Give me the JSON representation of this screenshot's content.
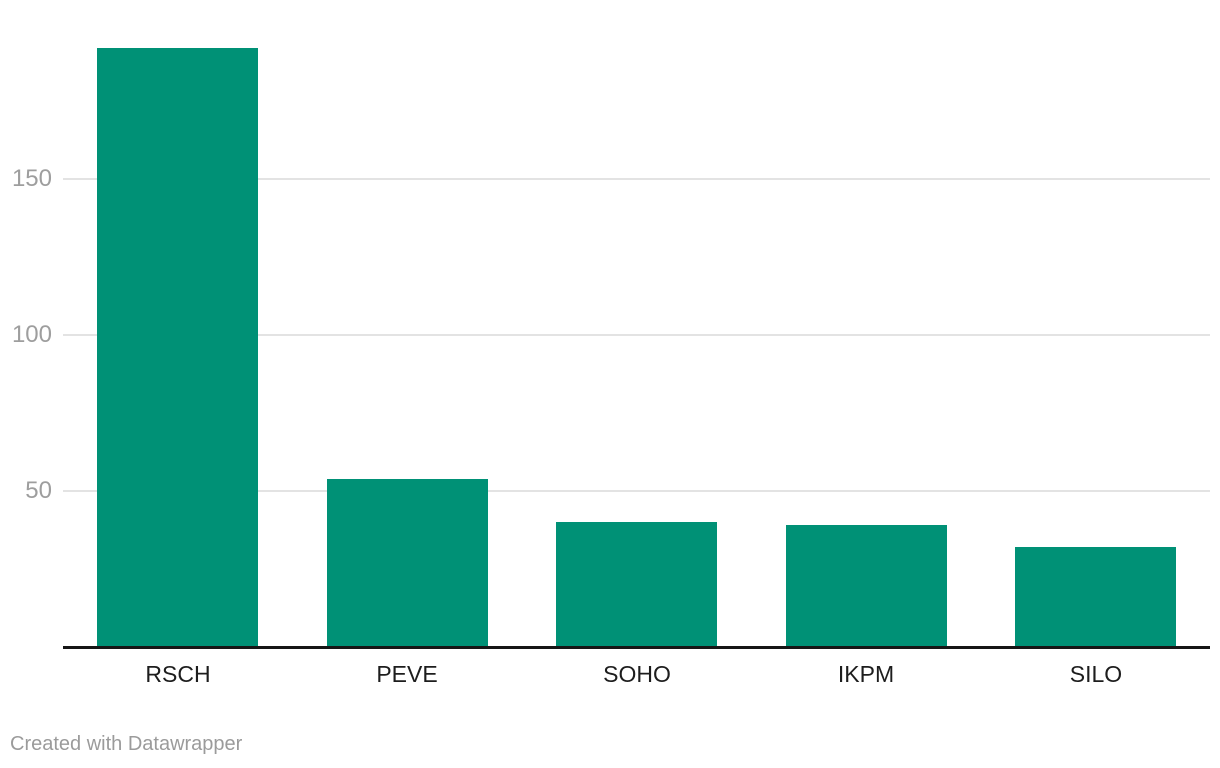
{
  "footer": {
    "credit": "Created with Datawrapper"
  },
  "colors": {
    "bar": "#009176",
    "axis_line": "#161616",
    "gridline": "#e3e3e3",
    "tick_label": "#9e9e9e",
    "category_label": "#1d1d1d",
    "footer_text": "#9b9b9b",
    "background": "#ffffff"
  },
  "chart_data": {
    "type": "bar",
    "categories": [
      "RSCH",
      "PEVE",
      "SOHO",
      "IKPM",
      "SILO"
    ],
    "values": [
      192,
      54,
      40,
      39,
      32
    ],
    "title": "",
    "xlabel": "",
    "ylabel": "",
    "ylim": [
      0,
      200
    ],
    "yticks": [
      50,
      100,
      150
    ],
    "grid": true,
    "legend": false,
    "bar_color": "#009176"
  }
}
